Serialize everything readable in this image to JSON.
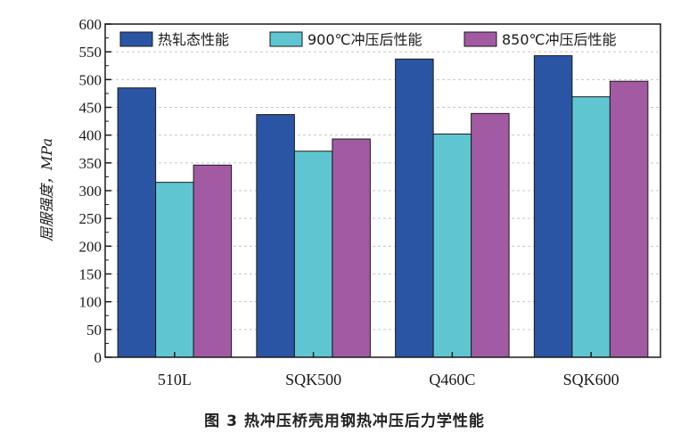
{
  "caption": "图 3   热冲压桥壳用钢热冲压后力学性能",
  "chart_data": {
    "type": "bar",
    "title": "",
    "xlabel": "",
    "ylabel": "屈服强度，MPa",
    "ylim": [
      0,
      600
    ],
    "ytick_step": 50,
    "grid": true,
    "legend_position": "top",
    "categories": [
      "510L",
      "SQK500",
      "Q460C",
      "SQK600"
    ],
    "series": [
      {
        "name": "热轧态性能",
        "color": "#2a55a4",
        "values": [
          485,
          437,
          537,
          543
        ]
      },
      {
        "name": "900℃冲压后性能",
        "color": "#5fc6d1",
        "values": [
          315,
          371,
          402,
          469
        ]
      },
      {
        "name": "850℃冲压后性能",
        "color": "#a25aa3",
        "values": [
          346,
          393,
          439,
          497
        ]
      }
    ]
  }
}
